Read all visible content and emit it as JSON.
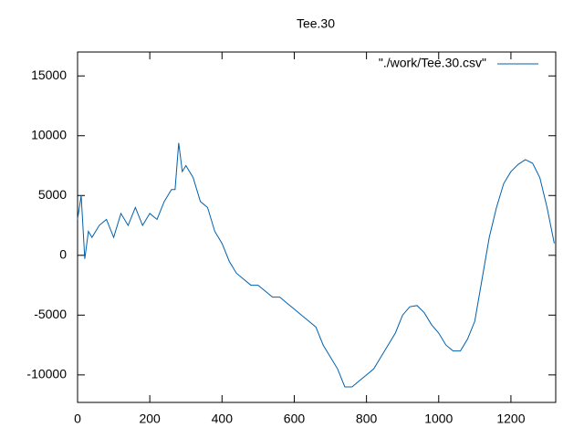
{
  "chart_data": {
    "type": "line",
    "title": "Tee.30",
    "x": [
      0,
      10,
      20,
      30,
      40,
      60,
      80,
      100,
      120,
      140,
      160,
      180,
      200,
      220,
      240,
      260,
      270,
      280,
      290,
      300,
      320,
      340,
      360,
      380,
      400,
      420,
      440,
      460,
      480,
      500,
      520,
      540,
      560,
      580,
      600,
      620,
      640,
      660,
      680,
      700,
      720,
      740,
      760,
      780,
      800,
      820,
      840,
      860,
      880,
      900,
      920,
      940,
      960,
      980,
      1000,
      1020,
      1040,
      1060,
      1080,
      1100,
      1120,
      1140,
      1160,
      1180,
      1200,
      1220,
      1240,
      1260,
      1280,
      1300,
      1320
    ],
    "series": [
      {
        "name": "\"./work/Tee.30.csv\"",
        "color": "#0060ad",
        "values": [
          3000,
          5000,
          -300,
          2000,
          1500,
          2500,
          3000,
          1500,
          3500,
          2500,
          4000,
          2500,
          3500,
          3000,
          4500,
          5500,
          5500,
          9400,
          7000,
          7500,
          6500,
          4500,
          4000,
          2000,
          1000,
          -500,
          -1500,
          -2000,
          -2500,
          -2500,
          -3000,
          -3500,
          -3500,
          -4000,
          -4500,
          -5000,
          -5500,
          -6000,
          -7500,
          -8500,
          -9500,
          -11000,
          -11000,
          -10500,
          -10000,
          -9500,
          -8500,
          -7500,
          -6500,
          -5000,
          -4300,
          -4200,
          -4800,
          -5800,
          -6500,
          -7500,
          -8000,
          -8000,
          -7000,
          -5500,
          -2000,
          1500,
          4000,
          6000,
          7000,
          7600,
          8000,
          7700,
          6500,
          4000,
          1000
        ]
      }
    ],
    "xlim": [
      0,
      1324
    ],
    "xticks": [
      0,
      200,
      400,
      600,
      800,
      1000,
      1200
    ],
    "ylim": [
      -12300,
      17000
    ],
    "yticks": [
      -10000,
      -5000,
      0,
      5000,
      10000,
      15000
    ],
    "legend": "top-right",
    "grid": false
  }
}
